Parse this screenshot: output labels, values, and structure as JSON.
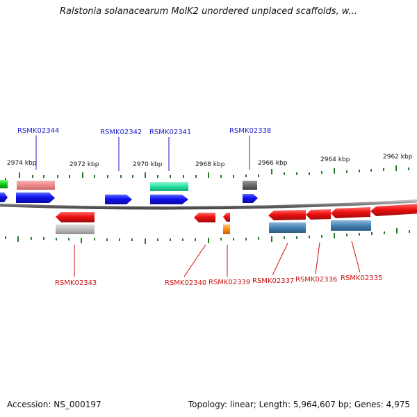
{
  "title": "Ralstonia solanacearum MolK2 unordered unplaced scaffolds, w...",
  "footer": {
    "accession": "Accession: NS_000197",
    "summary": "Topology: linear; Length: 5,964,607 bp; Genes: 4,975"
  },
  "colors": {
    "backbone": "#7a7a7a",
    "tick": "#2a7a2a",
    "label_top": "#1a1acc",
    "label_bottom": "#cc1111",
    "forward_gene": "#1010ee",
    "reverse_gene": "#ee1111"
  },
  "scale": {
    "labels": [
      {
        "text": "2974 kbp"
      },
      {
        "text": "2972 kbp"
      },
      {
        "text": "2970 kbp"
      },
      {
        "text": "2968 kbp"
      },
      {
        "text": "2966 kbp"
      },
      {
        "text": "2964 kbp"
      },
      {
        "text": "2962 kbp"
      }
    ]
  },
  "genes_top": [
    {
      "name": "RSMK02344"
    },
    {
      "name": "RSMK02342"
    },
    {
      "name": "RSMK02341"
    },
    {
      "name": "RSMK02338"
    }
  ],
  "genes_bottom": [
    {
      "name": "RSMK02343"
    },
    {
      "name": "RSMK02340"
    },
    {
      "name": "RSMK02339"
    },
    {
      "name": "RSMK02337"
    },
    {
      "name": "RSMK02336"
    },
    {
      "name": "RSMK02335"
    }
  ]
}
